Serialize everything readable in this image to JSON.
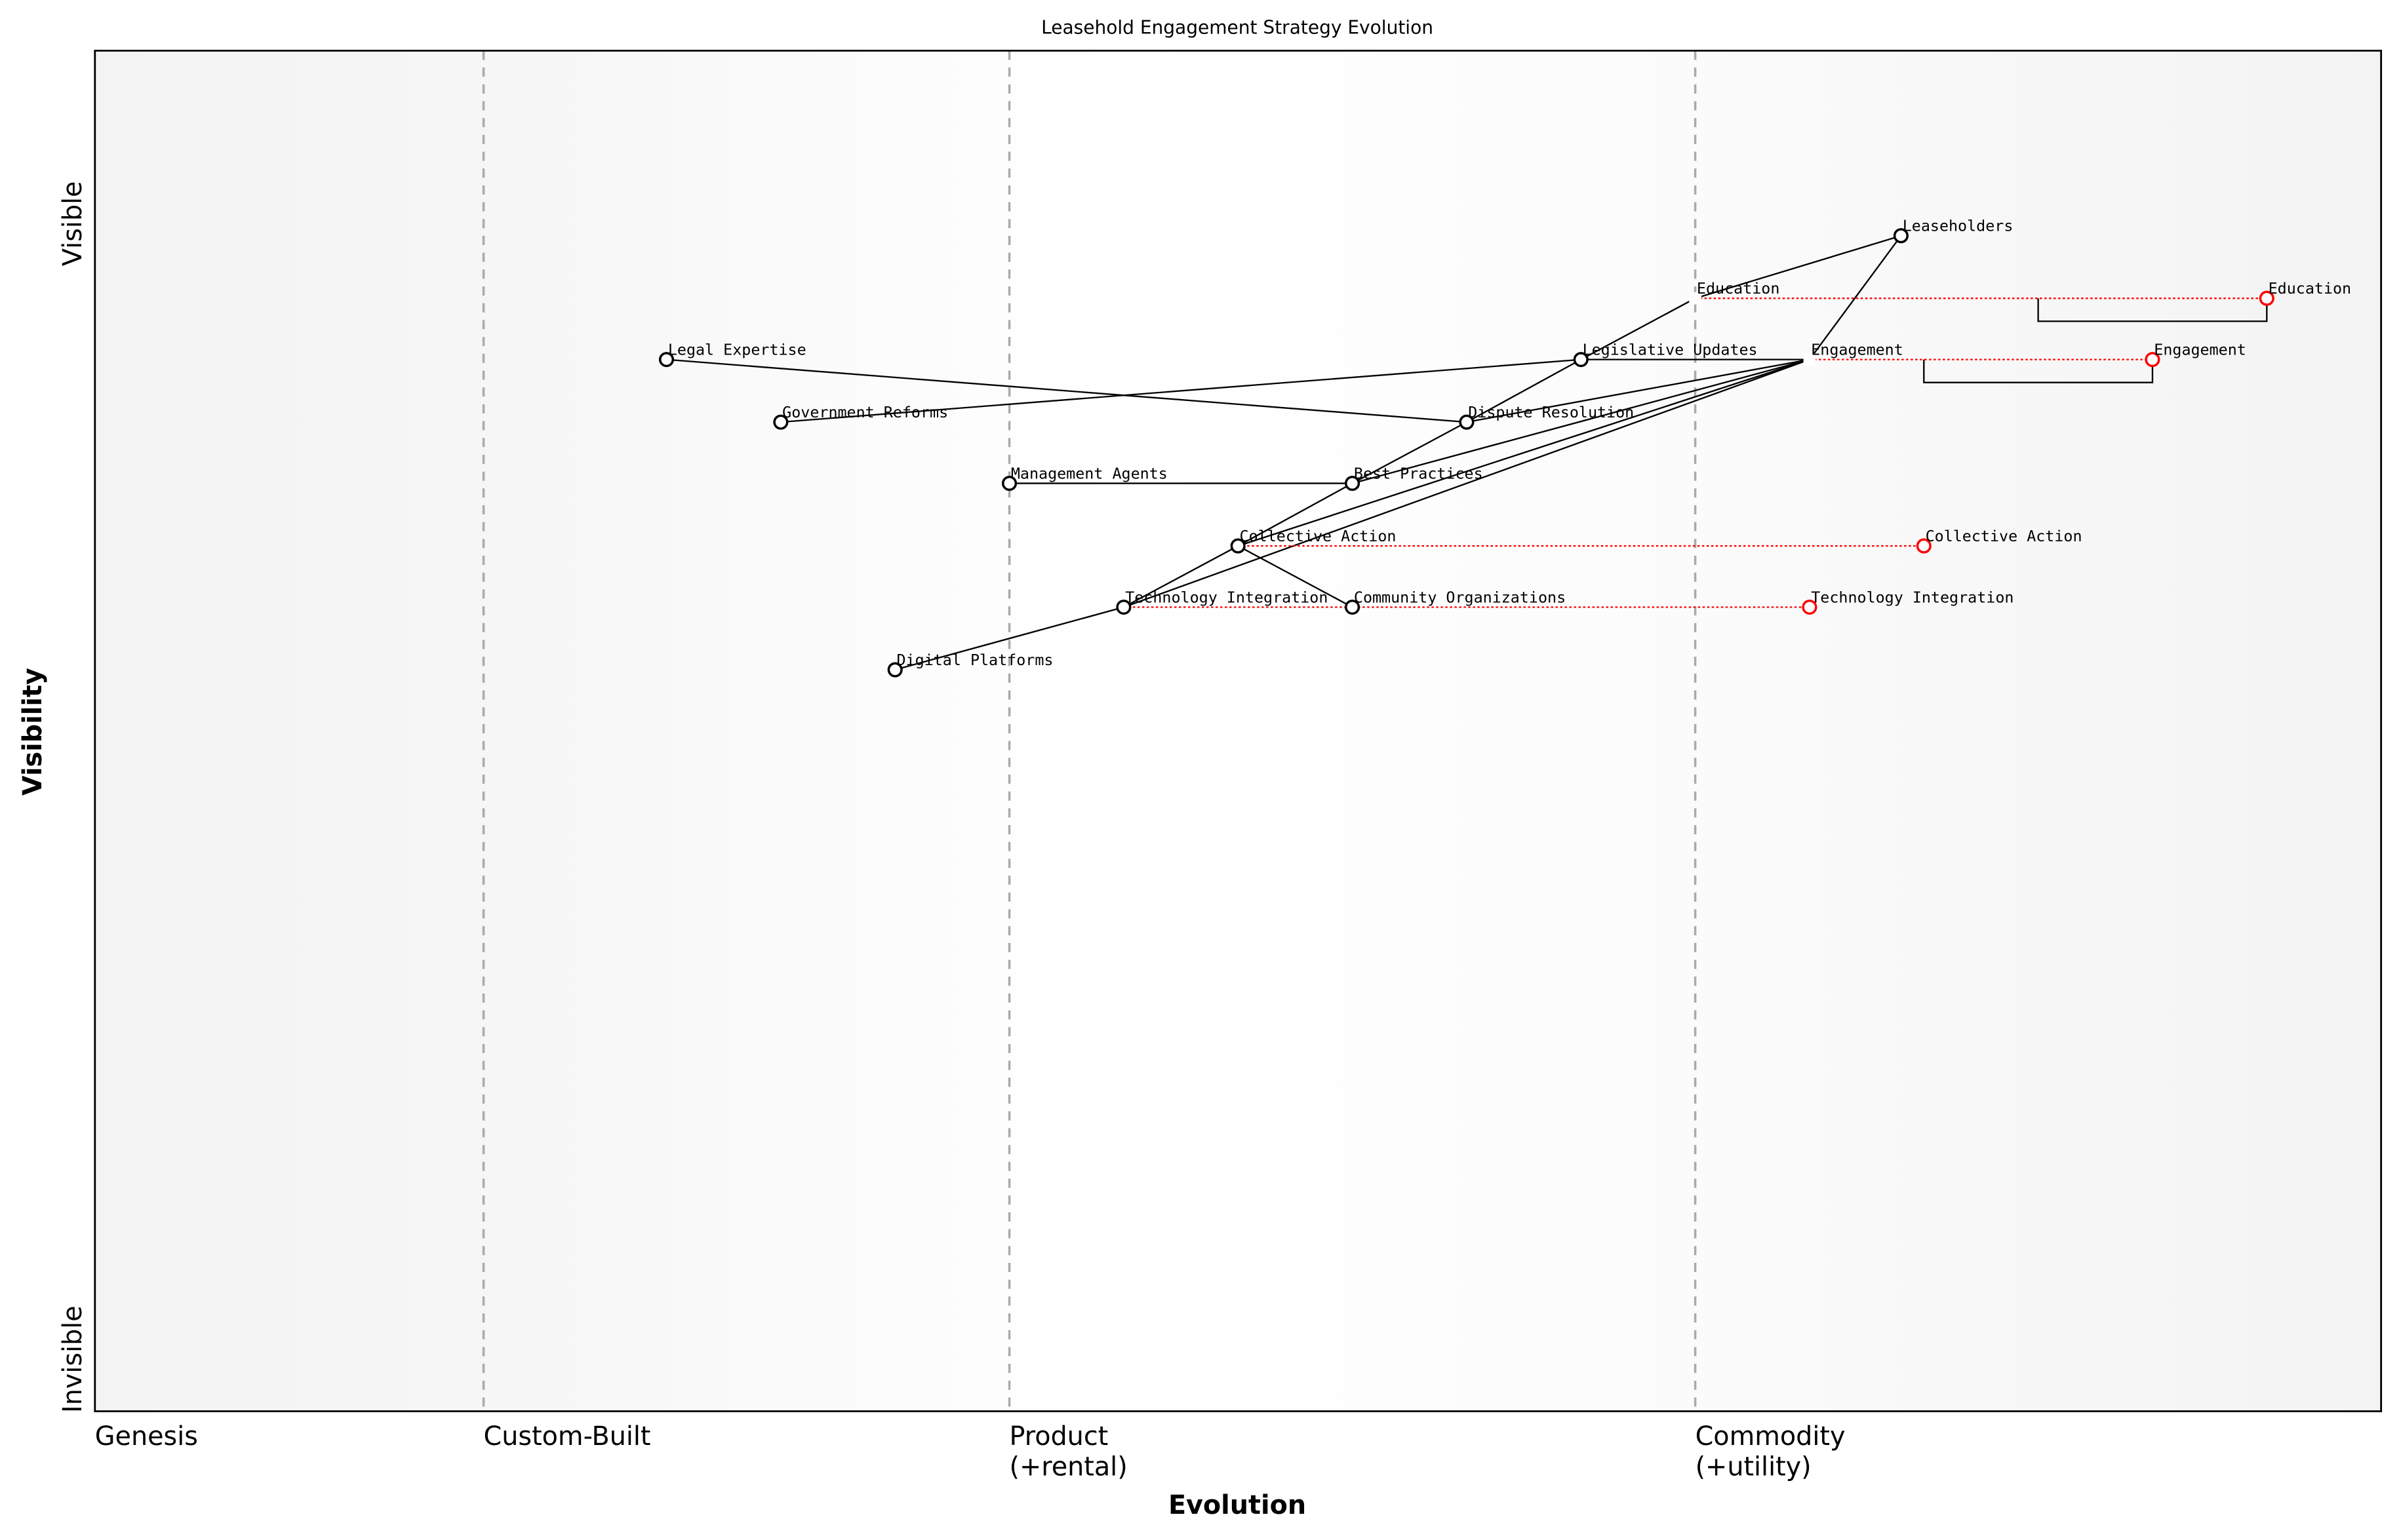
{
  "chart_data": {
    "type": "scatter",
    "title": "Leasehold Engagement Strategy Evolution",
    "xlabel": "Evolution",
    "ylabel": "Visibility",
    "xlim": [
      0,
      1
    ],
    "ylim": [
      0,
      1
    ],
    "y_tick_labels": {
      "top": "Visible",
      "bottom": "Invisible"
    },
    "stages": [
      {
        "label": "Genesis",
        "x": 0.0,
        "divider": false
      },
      {
        "label": "Custom-Built",
        "x": 0.17,
        "divider": true
      },
      {
        "label": "Product\n(+rental)",
        "x": 0.4,
        "divider": true
      },
      {
        "label": "Commodity\n(+utility)",
        "x": 0.7,
        "divider": true
      }
    ],
    "components": [
      {
        "name": "Leaseholders",
        "x": 0.79,
        "y": 0.864,
        "marker": true
      },
      {
        "name": "Education",
        "x": 0.7,
        "y": 0.818,
        "marker": false
      },
      {
        "name": "Legislative Updates",
        "x": 0.65,
        "y": 0.773,
        "marker": true
      },
      {
        "name": "Engagement",
        "x": 0.75,
        "y": 0.773,
        "marker": false
      },
      {
        "name": "Legal Expertise",
        "x": 0.25,
        "y": 0.773,
        "marker": true
      },
      {
        "name": "Government Reforms",
        "x": 0.3,
        "y": 0.727,
        "marker": true
      },
      {
        "name": "Dispute Resolution",
        "x": 0.6,
        "y": 0.727,
        "marker": true
      },
      {
        "name": "Management Agents",
        "x": 0.4,
        "y": 0.682,
        "marker": true
      },
      {
        "name": "Best Practices",
        "x": 0.55,
        "y": 0.682,
        "marker": true
      },
      {
        "name": "Collective Action",
        "x": 0.5,
        "y": 0.636,
        "marker": true
      },
      {
        "name": "Technology Integration",
        "x": 0.45,
        "y": 0.591,
        "marker": true
      },
      {
        "name": "Community Organizations",
        "x": 0.55,
        "y": 0.591,
        "marker": true
      },
      {
        "name": "Digital Platforms",
        "x": 0.35,
        "y": 0.545,
        "marker": true
      }
    ],
    "links": [
      [
        "Leaseholders",
        "Education"
      ],
      [
        "Leaseholders",
        "Engagement"
      ],
      [
        "Education",
        "Legislative Updates"
      ],
      [
        "Legislative Updates",
        "Dispute Resolution"
      ],
      [
        "Dispute Resolution",
        "Best Practices"
      ],
      [
        "Best Practices",
        "Collective Action"
      ],
      [
        "Collective Action",
        "Technology Integration"
      ],
      [
        "Engagement",
        "Legislative Updates"
      ],
      [
        "Engagement",
        "Dispute Resolution"
      ],
      [
        "Engagement",
        "Best Practices"
      ],
      [
        "Engagement",
        "Collective Action"
      ],
      [
        "Engagement",
        "Technology Integration"
      ],
      [
        "Legal Expertise",
        "Dispute Resolution"
      ],
      [
        "Government Reforms",
        "Legislative Updates"
      ],
      [
        "Management Agents",
        "Best Practices"
      ],
      [
        "Collective Action",
        "Community Organizations"
      ],
      [
        "Digital Platforms",
        "Technology Integration"
      ]
    ],
    "evolutions": [
      {
        "name": "Education",
        "from_x": 0.7,
        "to_x": 0.95,
        "y": 0.818
      },
      {
        "name": "Engagement",
        "from_x": 0.75,
        "to_x": 0.9,
        "y": 0.773
      },
      {
        "name": "Collective Action",
        "from_x": 0.5,
        "to_x": 0.8,
        "y": 0.636
      },
      {
        "name": "Technology Integration",
        "from_x": 0.45,
        "to_x": 0.75,
        "y": 0.591
      }
    ],
    "inertia": [
      {
        "name": "Education",
        "x_start": 0.85,
        "x_end": 0.95,
        "y": 0.818
      },
      {
        "name": "Engagement",
        "x_start": 0.8,
        "x_end": 0.9,
        "y": 0.773
      }
    ],
    "colors": {
      "component": "#000000",
      "evolved": "#ff0000",
      "divider": "#aaaaaa",
      "edge_bg": "#f3f3f3",
      "mid_bg": "#ffffff"
    }
  }
}
